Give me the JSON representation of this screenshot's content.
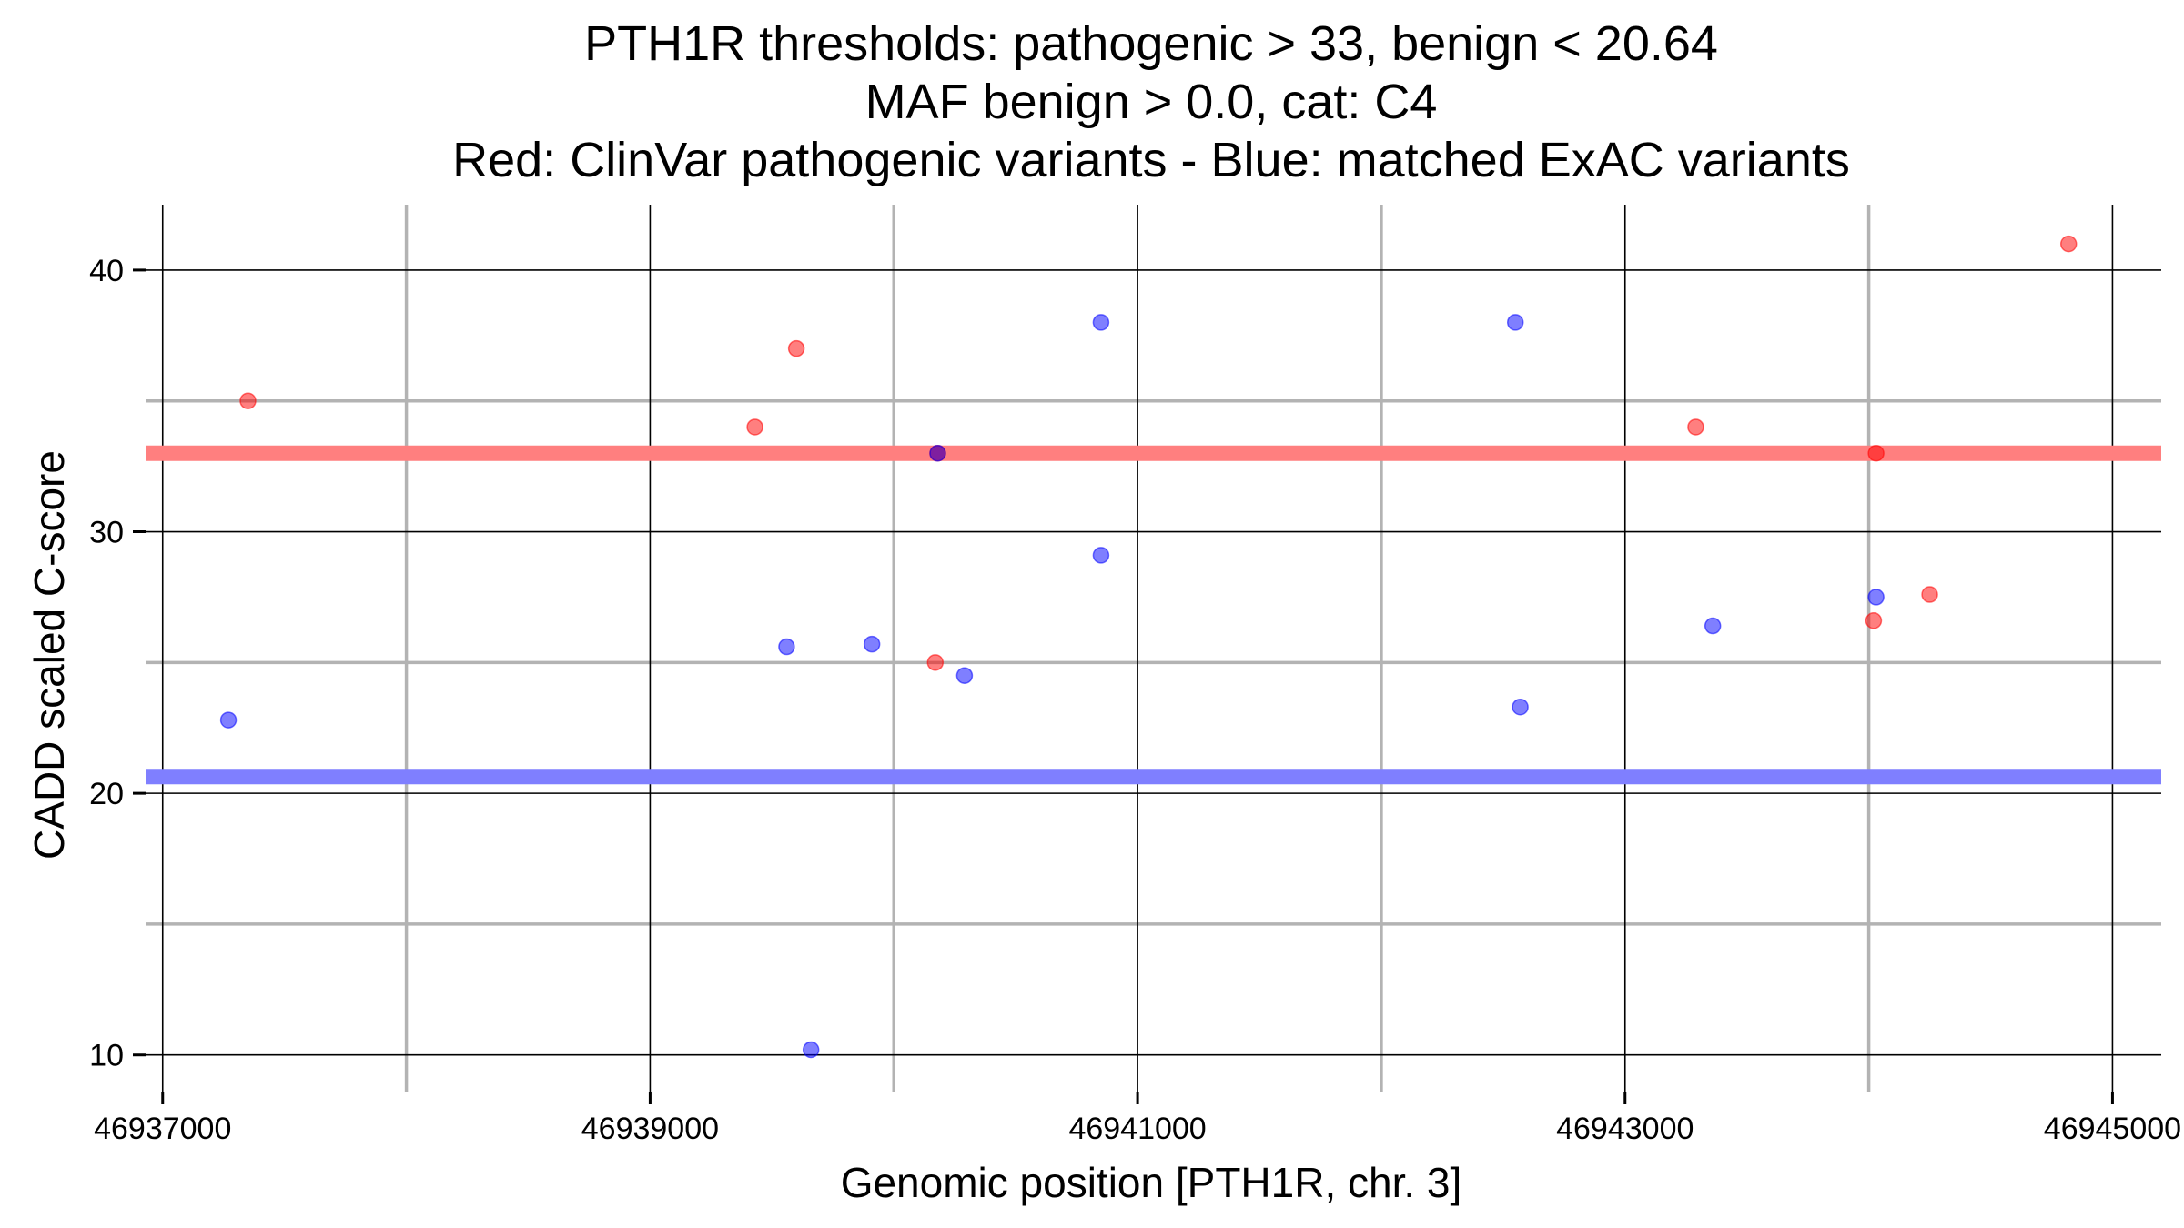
{
  "chart_data": {
    "type": "scatter",
    "title": [
      "PTH1R thresholds: pathogenic > 33, benign < 20.64",
      "MAF benign > 0.0, cat: C4",
      "Red: ClinVar pathogenic variants - Blue: matched ExAC variants"
    ],
    "xlabel": "Genomic position [PTH1R, chr. 3]",
    "ylabel": "CADD scaled C-score",
    "xlim": [
      46936930,
      46945200
    ],
    "ylim": [
      8.6,
      42.5
    ],
    "x_major_ticks": [
      46937000,
      46939000,
      46941000,
      46943000,
      46945000
    ],
    "x_tick_labels": [
      "46937000",
      "46939000",
      "46941000",
      "46943000",
      "46945000"
    ],
    "x_minor_ticks": [
      46938000,
      46940000,
      46942000,
      46944000
    ],
    "y_major_ticks": [
      10,
      20,
      30,
      40
    ],
    "y_tick_labels": [
      "10",
      "20",
      "30",
      "40"
    ],
    "y_minor_ticks": [
      15,
      25,
      35
    ],
    "thresholds": [
      {
        "name": "pathogenic",
        "value": 33,
        "color": "#ff7f7f"
      },
      {
        "name": "benign",
        "value": 20.64,
        "color": "#7f7fff"
      }
    ],
    "series": [
      {
        "name": "ClinVar pathogenic variants",
        "color": "#ff0000",
        "points": [
          {
            "x": 46937350,
            "y": 35.0
          },
          {
            "x": 46939430,
            "y": 34.0
          },
          {
            "x": 46939600,
            "y": 37.0
          },
          {
            "x": 46940180,
            "y": 33.0
          },
          {
            "x": 46940170,
            "y": 25.0
          },
          {
            "x": 46943290,
            "y": 34.0
          },
          {
            "x": 46944030,
            "y": 33.0
          },
          {
            "x": 46944020,
            "y": 26.6
          },
          {
            "x": 46944250,
            "y": 27.6
          },
          {
            "x": 46944820,
            "y": 41.0
          }
        ]
      },
      {
        "name": "matched ExAC variants",
        "color": "#0000ff",
        "points": [
          {
            "x": 46937270,
            "y": 22.8
          },
          {
            "x": 46939560,
            "y": 25.6
          },
          {
            "x": 46939660,
            "y": 10.2
          },
          {
            "x": 46939910,
            "y": 25.7
          },
          {
            "x": 46940180,
            "y": 33.0
          },
          {
            "x": 46940290,
            "y": 24.5
          },
          {
            "x": 46940850,
            "y": 38.0
          },
          {
            "x": 46940850,
            "y": 29.1
          },
          {
            "x": 46942550,
            "y": 38.0
          },
          {
            "x": 46942570,
            "y": 23.3
          },
          {
            "x": 46943360,
            "y": 26.4
          },
          {
            "x": 46944030,
            "y": 27.5
          }
        ]
      }
    ]
  }
}
